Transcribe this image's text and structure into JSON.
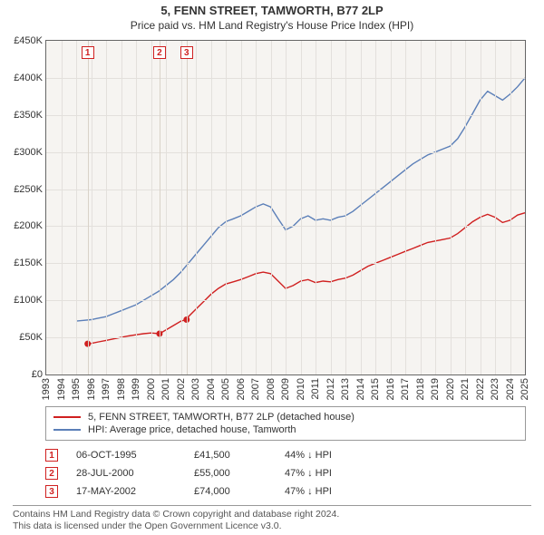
{
  "title_line1": "5, FENN STREET, TAMWORTH, B77 2LP",
  "title_line2": "Price paid vs. HM Land Registry's House Price Index (HPI)",
  "chart": {
    "background_color": "#f6f4f1",
    "grid_color": "#e3e0dc",
    "axis_color": "#666666",
    "x_min_year": 1993,
    "x_max_year": 2025,
    "y_min": 0,
    "y_max": 450000,
    "y_ticks": [
      0,
      50000,
      100000,
      150000,
      200000,
      250000,
      300000,
      350000,
      400000,
      450000
    ],
    "y_tick_labels": [
      "£0",
      "£50K",
      "£100K",
      "£150K",
      "£200K",
      "£250K",
      "£300K",
      "£350K",
      "£400K",
      "£450K"
    ],
    "x_ticks": [
      1993,
      1994,
      1995,
      1996,
      1997,
      1998,
      1999,
      2000,
      2001,
      2002,
      2003,
      2004,
      2005,
      2006,
      2007,
      2008,
      2009,
      2010,
      2011,
      2012,
      2013,
      2014,
      2015,
      2016,
      2017,
      2018,
      2019,
      2020,
      2021,
      2022,
      2023,
      2024,
      2025
    ],
    "series": [
      {
        "name": "hpi",
        "color": "#5b7fb8",
        "line_width": 1.4,
        "points": [
          [
            1995.0,
            72000
          ],
          [
            1995.5,
            73000
          ],
          [
            1996.0,
            74000
          ],
          [
            1996.5,
            76000
          ],
          [
            1997.0,
            78000
          ],
          [
            1997.5,
            82000
          ],
          [
            1998.0,
            86000
          ],
          [
            1998.5,
            90000
          ],
          [
            1999.0,
            94000
          ],
          [
            1999.5,
            100000
          ],
          [
            2000.0,
            106000
          ],
          [
            2000.5,
            112000
          ],
          [
            2001.0,
            120000
          ],
          [
            2001.5,
            128000
          ],
          [
            2002.0,
            138000
          ],
          [
            2002.5,
            150000
          ],
          [
            2003.0,
            162000
          ],
          [
            2003.5,
            174000
          ],
          [
            2004.0,
            186000
          ],
          [
            2004.5,
            198000
          ],
          [
            2005.0,
            206000
          ],
          [
            2005.5,
            210000
          ],
          [
            2006.0,
            214000
          ],
          [
            2006.5,
            220000
          ],
          [
            2007.0,
            226000
          ],
          [
            2007.5,
            230000
          ],
          [
            2008.0,
            226000
          ],
          [
            2008.5,
            210000
          ],
          [
            2009.0,
            195000
          ],
          [
            2009.5,
            200000
          ],
          [
            2010.0,
            210000
          ],
          [
            2010.5,
            214000
          ],
          [
            2011.0,
            208000
          ],
          [
            2011.5,
            210000
          ],
          [
            2012.0,
            208000
          ],
          [
            2012.5,
            212000
          ],
          [
            2013.0,
            214000
          ],
          [
            2013.5,
            220000
          ],
          [
            2014.0,
            228000
          ],
          [
            2014.5,
            236000
          ],
          [
            2015.0,
            244000
          ],
          [
            2015.5,
            252000
          ],
          [
            2016.0,
            260000
          ],
          [
            2016.5,
            268000
          ],
          [
            2017.0,
            276000
          ],
          [
            2017.5,
            284000
          ],
          [
            2018.0,
            290000
          ],
          [
            2018.5,
            296000
          ],
          [
            2019.0,
            300000
          ],
          [
            2019.5,
            304000
          ],
          [
            2020.0,
            308000
          ],
          [
            2020.5,
            318000
          ],
          [
            2021.0,
            334000
          ],
          [
            2021.5,
            352000
          ],
          [
            2022.0,
            370000
          ],
          [
            2022.5,
            382000
          ],
          [
            2023.0,
            376000
          ],
          [
            2023.5,
            370000
          ],
          [
            2024.0,
            378000
          ],
          [
            2024.5,
            388000
          ],
          [
            2025.0,
            400000
          ]
        ]
      },
      {
        "name": "property",
        "color": "#d02020",
        "line_width": 1.4,
        "points": [
          [
            1995.77,
            41500
          ],
          [
            1996.0,
            42000
          ],
          [
            1996.5,
            44000
          ],
          [
            1997.0,
            46000
          ],
          [
            1997.5,
            48000
          ],
          [
            1998.0,
            50000
          ],
          [
            1998.5,
            52000
          ],
          [
            1999.0,
            53500
          ],
          [
            1999.5,
            55000
          ],
          [
            2000.0,
            56000
          ],
          [
            2000.57,
            55000
          ],
          [
            2001.0,
            60000
          ],
          [
            2001.5,
            66000
          ],
          [
            2002.0,
            72000
          ],
          [
            2002.38,
            74000
          ],
          [
            2002.5,
            78000
          ],
          [
            2003.0,
            88000
          ],
          [
            2003.5,
            98000
          ],
          [
            2004.0,
            108000
          ],
          [
            2004.5,
            116000
          ],
          [
            2005.0,
            122000
          ],
          [
            2005.5,
            125000
          ],
          [
            2006.0,
            128000
          ],
          [
            2006.5,
            132000
          ],
          [
            2007.0,
            136000
          ],
          [
            2007.5,
            138000
          ],
          [
            2008.0,
            136000
          ],
          [
            2008.5,
            126000
          ],
          [
            2009.0,
            116000
          ],
          [
            2009.5,
            120000
          ],
          [
            2010.0,
            126000
          ],
          [
            2010.5,
            128000
          ],
          [
            2011.0,
            124000
          ],
          [
            2011.5,
            126000
          ],
          [
            2012.0,
            125000
          ],
          [
            2012.5,
            128000
          ],
          [
            2013.0,
            130000
          ],
          [
            2013.5,
            134000
          ],
          [
            2014.0,
            140000
          ],
          [
            2014.5,
            146000
          ],
          [
            2015.0,
            150000
          ],
          [
            2015.5,
            154000
          ],
          [
            2016.0,
            158000
          ],
          [
            2016.5,
            162000
          ],
          [
            2017.0,
            166000
          ],
          [
            2017.5,
            170000
          ],
          [
            2018.0,
            174000
          ],
          [
            2018.5,
            178000
          ],
          [
            2019.0,
            180000
          ],
          [
            2019.5,
            182000
          ],
          [
            2020.0,
            184000
          ],
          [
            2020.5,
            190000
          ],
          [
            2021.0,
            198000
          ],
          [
            2021.5,
            206000
          ],
          [
            2022.0,
            212000
          ],
          [
            2022.5,
            216000
          ],
          [
            2023.0,
            212000
          ],
          [
            2023.5,
            205000
          ],
          [
            2024.0,
            208000
          ],
          [
            2024.5,
            215000
          ],
          [
            2025.0,
            218000
          ]
        ]
      }
    ],
    "sale_markers": [
      {
        "n": "1",
        "year": 1995.77,
        "price": 41500,
        "ref_color": "#d02020"
      },
      {
        "n": "2",
        "year": 2000.57,
        "price": 55000,
        "ref_color": "#d02020"
      },
      {
        "n": "3",
        "year": 2002.38,
        "price": 74000,
        "ref_color": "#d02020"
      }
    ],
    "dot_color": "#d02020",
    "dot_radius": 3.5
  },
  "legend": {
    "items": [
      {
        "color": "#d02020",
        "label": "5, FENN STREET, TAMWORTH, B77 2LP (detached house)"
      },
      {
        "color": "#5b7fb8",
        "label": "HPI: Average price, detached house, Tamworth"
      }
    ]
  },
  "sales": [
    {
      "n": "1",
      "date": "06-OCT-1995",
      "price": "£41,500",
      "hpi": "44% ↓ HPI",
      "box_color": "#d02020"
    },
    {
      "n": "2",
      "date": "28-JUL-2000",
      "price": "£55,000",
      "hpi": "47% ↓ HPI",
      "box_color": "#d02020"
    },
    {
      "n": "3",
      "date": "17-MAY-2002",
      "price": "£74,000",
      "hpi": "47% ↓ HPI",
      "box_color": "#d02020"
    }
  ],
  "footer_line1": "Contains HM Land Registry data © Crown copyright and database right 2024.",
  "footer_line2": "This data is licensed under the Open Government Licence v3.0."
}
